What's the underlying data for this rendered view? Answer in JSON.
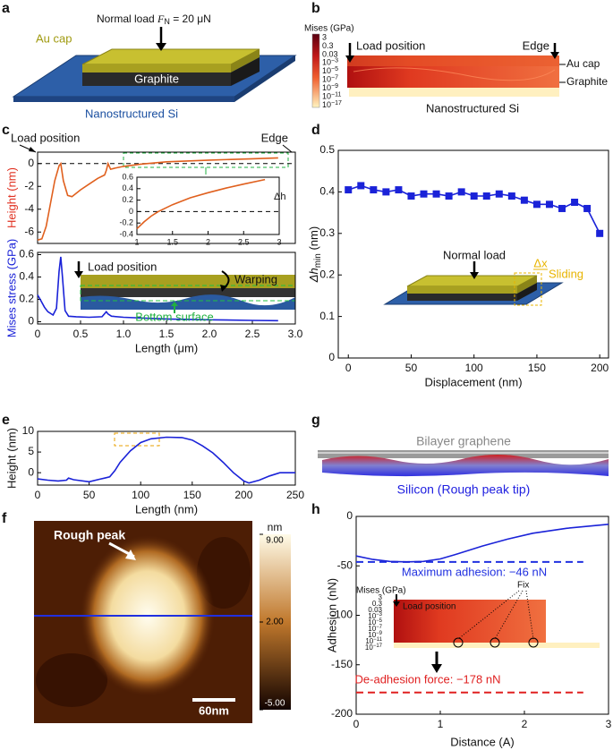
{
  "panels": {
    "labels": [
      "a",
      "b",
      "c",
      "d",
      "e",
      "f",
      "g",
      "h"
    ],
    "a": {
      "load_prefix": "Normal load ",
      "load_var": "F",
      "load_sub": "N",
      "load_rest": " = 20 μN",
      "cap": "Au cap",
      "graphite": "Graphite",
      "substrate": "Nanostructured Si"
    },
    "b": {
      "colorbar_title": "Mises (GPa)",
      "colorbar_ticks": [
        "3",
        "0.3",
        "0.03",
        {
          "base": "10",
          "exp": "−3"
        },
        {
          "base": "10",
          "exp": "−5"
        },
        {
          "base": "10",
          "exp": "−7"
        },
        {
          "base": "10",
          "exp": "−9"
        },
        {
          "base": "10",
          "exp": "−11"
        },
        {
          "base": "10",
          "exp": "−17"
        }
      ],
      "load": "Load position",
      "edge": "Edge",
      "cap": "Au cap",
      "graphite": "Graphite",
      "substrate": "Nanostructured Si"
    },
    "f": {
      "annotation": "Rough peak",
      "unit": "nm",
      "colorbar_lim": [
        -5,
        9
      ],
      "colorbar_ticks": [
        {
          "value": 9,
          "label": "9.00"
        },
        {
          "value": 2,
          "label": "2.00"
        },
        {
          "value": -5,
          "label": "-5.00"
        }
      ],
      "scale_bar": "60nm"
    },
    "g": {
      "top": "Bilayer graphene",
      "bottom": "Silicon (Rough peak tip)"
    }
  },
  "chart_data": [
    {
      "type": "line",
      "ylabel": "Height (nm)",
      "ylabel_color": "#e03020",
      "color": "#e0601e",
      "xlim": [
        0,
        3
      ],
      "ylim": [
        -7,
        1
      ],
      "yticks": [
        -6,
        -4,
        -2,
        0
      ],
      "reference_line": 0,
      "x": [
        0,
        0.05,
        0.1,
        0.15,
        0.2,
        0.25,
        0.27,
        0.3,
        0.35,
        0.4,
        0.5,
        0.6,
        0.7,
        0.78,
        0.8,
        0.82,
        0.85,
        0.9,
        1.0,
        1.2,
        1.5,
        2.0,
        2.5,
        2.8
      ],
      "values": [
        -6.7,
        -6.6,
        -5.5,
        -3.5,
        -1.5,
        -0.2,
        0,
        -1.5,
        -2.8,
        -2.9,
        -2.3,
        -1.8,
        -1.3,
        -1.0,
        -0.6,
        0,
        -0.5,
        -0.4,
        -0.25,
        -0.05,
        0.15,
        0.3,
        0.42,
        0.5
      ],
      "annotations": [
        "Load position",
        "Edge"
      ]
    },
    {
      "type": "line",
      "color": "#e0601e",
      "xlim": [
        1,
        3
      ],
      "ylim": [
        -0.4,
        0.6
      ],
      "xticks": [
        1,
        1.5,
        2,
        2.5,
        3
      ],
      "yticks": [
        -0.4,
        -0.2,
        0,
        0.2,
        0.4,
        0.6
      ],
      "reference_line": 0,
      "x": [
        1,
        1.1,
        1.2,
        1.3,
        1.5,
        1.75,
        2,
        2.25,
        2.5,
        2.8
      ],
      "values": [
        -0.3,
        -0.18,
        -0.08,
        0.0,
        0.12,
        0.24,
        0.33,
        0.41,
        0.48,
        0.56
      ],
      "annotations": [
        "Δh"
      ]
    },
    {
      "type": "line",
      "xlabel": "Length (μm)",
      "ylabel": "Mises stress (GPa)",
      "ylabel_color": "#1a22d8",
      "color": "#1a22d8",
      "xlim": [
        0,
        3
      ],
      "ylim": [
        -0.02,
        0.62
      ],
      "xticks": [
        0,
        0.5,
        {
          "value": 1,
          "label": "1.0"
        },
        1.5,
        {
          "value": 2,
          "label": "2.0"
        },
        2.5,
        {
          "value": 3,
          "label": "3.0"
        }
      ],
      "yticks": [
        0,
        0.2,
        0.4,
        0.6
      ],
      "x": [
        0,
        0.03,
        0.08,
        0.12,
        0.18,
        0.22,
        0.25,
        0.27,
        0.29,
        0.32,
        0.36,
        0.45,
        0.6,
        0.75,
        0.8,
        0.82,
        0.86,
        1.0,
        1.5,
        2.0,
        2.5,
        2.8
      ],
      "values": [
        0.24,
        0.2,
        0.13,
        0.09,
        0.06,
        0.12,
        0.45,
        0.58,
        0.4,
        0.1,
        0.05,
        0.045,
        0.04,
        0.045,
        0.09,
        0.07,
        0.05,
        0.04,
        0.025,
        0.018,
        0.012,
        0.01
      ],
      "annotations": [
        "Load position",
        "Warping",
        "Bottom surface"
      ]
    },
    {
      "type": "line",
      "marker": "square",
      "xlabel": "Displacement (nm)",
      "ylabel": "Δh",
      "ylabel_sub": "min",
      "ylabel_unit": " (nm)",
      "color": "#1a22d8",
      "xlim": [
        -8,
        207
      ],
      "ylim": [
        0,
        0.5
      ],
      "xticks": [
        0,
        50,
        100,
        150,
        200
      ],
      "yticks": [
        0,
        0.1,
        0.2,
        0.3,
        0.4,
        0.5
      ],
      "x": [
        0,
        10,
        20,
        30,
        40,
        50,
        60,
        70,
        80,
        90,
        100,
        110,
        120,
        130,
        140,
        150,
        160,
        170,
        180,
        190,
        200
      ],
      "values": [
        0.405,
        0.415,
        0.405,
        0.4,
        0.405,
        0.39,
        0.395,
        0.395,
        0.39,
        0.4,
        0.39,
        0.39,
        0.395,
        0.39,
        0.38,
        0.37,
        0.37,
        0.36,
        0.375,
        0.36,
        0.3
      ],
      "annotations": [
        "Normal load",
        "Δx",
        "Sliding"
      ]
    },
    {
      "type": "line",
      "xlabel": "Length (nm)",
      "ylabel": "Height (nm)",
      "color": "#1a22d8",
      "xlim": [
        0,
        250
      ],
      "ylim": [
        -3,
        10
      ],
      "xticks": [
        0,
        50,
        100,
        150,
        200,
        250
      ],
      "yticks": [
        0,
        5,
        10
      ],
      "x": [
        0,
        10,
        20,
        28,
        30,
        35,
        50,
        60,
        65,
        70,
        75,
        80,
        90,
        100,
        110,
        125,
        140,
        150,
        160,
        170,
        180,
        190,
        200,
        205,
        215,
        225,
        235,
        250
      ],
      "values": [
        -1.5,
        -1.8,
        -2,
        -1.8,
        -1.3,
        -1.7,
        -2.2,
        -1.6,
        -1.3,
        -1,
        0.5,
        2.5,
        5.3,
        7.3,
        8.2,
        8.6,
        8.5,
        7.9,
        6.5,
        4.8,
        2.5,
        0,
        -2,
        -2.5,
        -1.8,
        -0.8,
        0,
        0
      ]
    },
    {
      "type": "line",
      "xlabel": "Distance (A)",
      "ylabel": "Adhesion (nN)",
      "color": "#1a22d8",
      "xlim": [
        0,
        3
      ],
      "ylim": [
        -200,
        0
      ],
      "xticks": [
        0,
        1,
        2,
        3
      ],
      "yticks": [
        -200,
        -150,
        -100,
        -50,
        0
      ],
      "x": [
        0,
        0.2,
        0.4,
        0.6,
        0.8,
        1,
        1.2,
        1.5,
        1.8,
        2.1,
        2.5,
        3
      ],
      "values": [
        -40,
        -43.5,
        -45.5,
        -46,
        -45.5,
        -43,
        -38,
        -30,
        -23,
        -17,
        -12,
        -8
      ],
      "lines": [
        {
          "value": -46,
          "label": "Maximum adhesion: −46 nN",
          "color": "#2030e0"
        },
        {
          "value": -178,
          "label": "De-adhesion force: −178 nN",
          "color": "#e02020"
        }
      ],
      "annotations": [
        "Mises (GPa)",
        "Load position",
        "Fix"
      ],
      "colorbar_ticks": [
        "3",
        "0.3",
        "0.03",
        {
          "base": "10",
          "exp": "−3"
        },
        {
          "base": "10",
          "exp": "−5"
        },
        {
          "base": "10",
          "exp": "−7"
        },
        {
          "base": "10",
          "exp": "−9"
        },
        {
          "base": "10",
          "exp": "−11"
        },
        {
          "base": "10",
          "exp": "−17"
        }
      ]
    }
  ]
}
